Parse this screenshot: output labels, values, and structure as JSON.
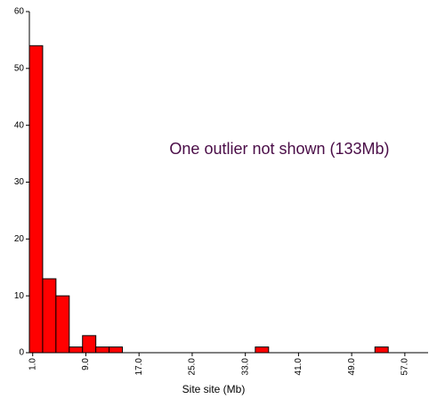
{
  "chart_data": {
    "type": "histogram",
    "x_label": "Site site (Mb)",
    "annotation": "One outlier not shown (133Mb)",
    "annotation_color": "#4a0d47",
    "color": "#ff0000",
    "bins": [
      0.5,
      2.5,
      4.5,
      6.5,
      8.5,
      10.5,
      12.5,
      14.5,
      16.5,
      18.5,
      20.5,
      22.5,
      24.5,
      26.5,
      28.5,
      30.5,
      32.5,
      34.5,
      36.5,
      38.5,
      40.5,
      42.5,
      44.5,
      46.5,
      48.5,
      50.5,
      52.5,
      54.5,
      56.5,
      58.5,
      60.5
    ],
    "counts": [
      54,
      13,
      10,
      1,
      3,
      1,
      1,
      0,
      0,
      0,
      0,
      0,
      0,
      0,
      0,
      0,
      0,
      1,
      0,
      0,
      0,
      0,
      0,
      0,
      0,
      0,
      1,
      0,
      0,
      0
    ],
    "xlim": [
      0.5,
      60.5
    ],
    "xticks": [
      {
        "value": 1,
        "label": "1.0"
      },
      {
        "value": 9,
        "label": "9.0"
      },
      {
        "value": 17,
        "label": "17.0"
      },
      {
        "value": 25,
        "label": "25.0"
      },
      {
        "value": 33,
        "label": "33.0"
      },
      {
        "value": 41,
        "label": "41.0"
      },
      {
        "value": 49,
        "label": "49.0"
      },
      {
        "value": 57,
        "label": "57.0"
      }
    ],
    "ylim": [
      0,
      60
    ],
    "yticks": [
      0,
      10,
      20,
      30,
      40,
      50,
      60
    ]
  }
}
